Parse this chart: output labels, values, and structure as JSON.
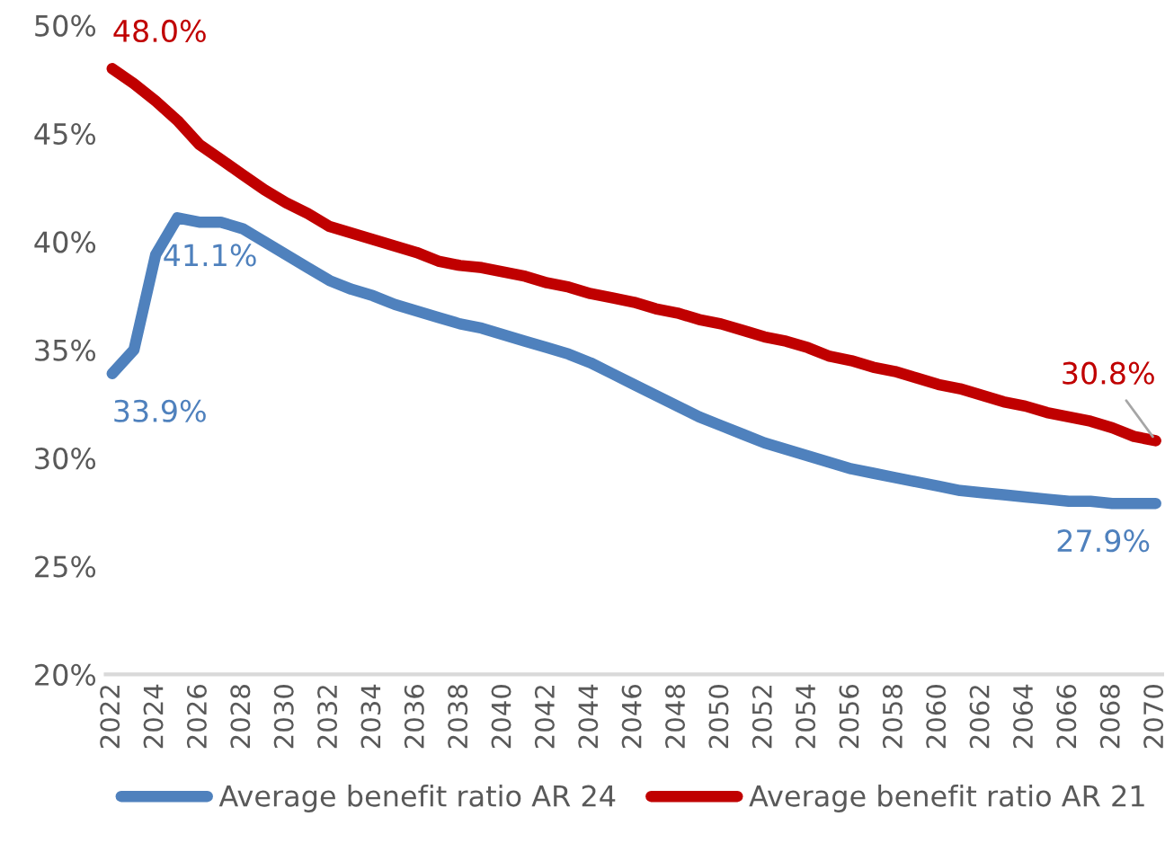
{
  "chart_data": {
    "type": "line",
    "categories": [
      "2022",
      null,
      "2024",
      null,
      "2026",
      null,
      "2028",
      null,
      "2030",
      null,
      "2032",
      null,
      "2034",
      null,
      "2036",
      null,
      "2038",
      null,
      "2040",
      null,
      "2042",
      null,
      "2044",
      null,
      "2046",
      null,
      "2048",
      null,
      "2050",
      null,
      "2052",
      null,
      "2054",
      null,
      "2056",
      null,
      "2058",
      null,
      "2060",
      null,
      "2062",
      null,
      "2064",
      null,
      "2066",
      null,
      "2068",
      null,
      "2070"
    ],
    "series": [
      {
        "name": "Average benefit ratio AR 24",
        "color": "#4f81bd",
        "values": [
          33.9,
          35.0,
          39.4,
          41.1,
          40.9,
          40.9,
          40.6,
          40.0,
          39.4,
          38.8,
          38.2,
          37.8,
          37.5,
          37.1,
          36.8,
          36.5,
          36.2,
          36.0,
          35.7,
          35.4,
          35.1,
          34.8,
          34.4,
          33.9,
          33.4,
          32.9,
          32.4,
          31.9,
          31.5,
          31.1,
          30.7,
          30.4,
          30.1,
          29.8,
          29.5,
          29.3,
          29.1,
          28.9,
          28.7,
          28.5,
          28.4,
          28.3,
          28.2,
          28.1,
          28.0,
          28.0,
          27.9,
          27.9,
          27.9
        ],
        "value_labels": [
          "33.9%",
          null,
          null,
          "41.1%",
          null,
          null,
          null,
          null,
          null,
          null,
          null,
          null,
          null,
          null,
          null,
          null,
          null,
          null,
          null,
          null,
          null,
          null,
          null,
          null,
          null,
          null,
          null,
          null,
          null,
          null,
          null,
          null,
          null,
          null,
          null,
          null,
          null,
          null,
          null,
          null,
          null,
          null,
          null,
          null,
          null,
          null,
          null,
          null,
          "27.9%"
        ]
      },
      {
        "name": "Average benefit ratio AR 21",
        "color": "#c00000",
        "values": [
          48.0,
          47.3,
          46.5,
          45.6,
          44.5,
          43.8,
          43.1,
          42.4,
          41.8,
          41.3,
          40.7,
          40.4,
          40.1,
          39.8,
          39.5,
          39.1,
          38.9,
          38.8,
          38.6,
          38.4,
          38.1,
          37.9,
          37.6,
          37.4,
          37.2,
          36.9,
          36.7,
          36.4,
          36.2,
          35.9,
          35.6,
          35.4,
          35.1,
          34.7,
          34.5,
          34.2,
          34.0,
          33.7,
          33.4,
          33.2,
          32.9,
          32.6,
          32.4,
          32.1,
          31.9,
          31.7,
          31.4,
          31.0,
          30.8
        ],
        "value_labels": [
          "48.0%",
          null,
          null,
          null,
          null,
          null,
          null,
          null,
          null,
          null,
          null,
          null,
          null,
          null,
          null,
          null,
          null,
          null,
          null,
          null,
          null,
          null,
          null,
          null,
          null,
          null,
          null,
          null,
          null,
          null,
          null,
          null,
          null,
          null,
          null,
          null,
          null,
          null,
          null,
          null,
          null,
          null,
          null,
          null,
          null,
          null,
          null,
          null,
          "30.8%"
        ]
      }
    ],
    "ylim": [
      20,
      50
    ],
    "yticks": [
      {
        "value": 20,
        "label": "20%"
      },
      {
        "value": 25,
        "label": "25%"
      },
      {
        "value": 30,
        "label": "30%"
      },
      {
        "value": 35,
        "label": "35%"
      },
      {
        "value": 40,
        "label": "40%"
      },
      {
        "value": 45,
        "label": "45%"
      },
      {
        "value": 50,
        "label": "50%"
      }
    ],
    "grid": false,
    "legend": "bottom"
  }
}
